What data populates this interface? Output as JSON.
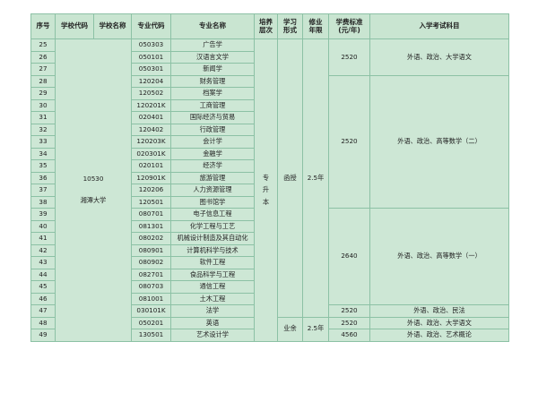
{
  "header": {
    "seq": "序号",
    "school_code": "学校代码",
    "school_name": "学校名称",
    "major_code": "专业代码",
    "major_name": "专业名称",
    "level": [
      "培养",
      "层次"
    ],
    "study_form": [
      "学习",
      "形式"
    ],
    "duration": [
      "修业",
      "年限"
    ],
    "fee": [
      "学费标准",
      "(元/年)"
    ],
    "exam": "入学考试科目"
  },
  "school": {
    "code": "10530",
    "name": "湘潭大学"
  },
  "level_value": [
    "专",
    "升",
    "本"
  ],
  "forms": [
    {
      "label": "函授",
      "duration": "2.5年",
      "rows": 23
    },
    {
      "label": "业余",
      "duration": "2.5年",
      "rows": 2
    }
  ],
  "fee_groups": [
    {
      "fee": "2520",
      "exam": "外语、政治、大学语文",
      "rows": 3
    },
    {
      "fee": "2520",
      "exam": "外语、政治、高等数学（二）",
      "rows": 11
    },
    {
      "fee": "2640",
      "exam": "外语、政治、高等数学（一）",
      "rows": 8
    },
    {
      "fee": "2520",
      "exam": "外语、政治、民法",
      "rows": 1
    },
    {
      "fee": "2520",
      "exam": "外语、政治、大学语文",
      "rows": 1
    },
    {
      "fee": "4560",
      "exam": "外语、政治、艺术概论",
      "rows": 1
    }
  ],
  "rows": [
    {
      "seq": "25",
      "code": "050303",
      "name": "广告学"
    },
    {
      "seq": "26",
      "code": "050101",
      "name": "汉语言文学"
    },
    {
      "seq": "27",
      "code": "050301",
      "name": "新闻学"
    },
    {
      "seq": "28",
      "code": "120204",
      "name": "财务管理"
    },
    {
      "seq": "29",
      "code": "120502",
      "name": "档案学"
    },
    {
      "seq": "30",
      "code": "120201K",
      "name": "工商管理"
    },
    {
      "seq": "31",
      "code": "020401",
      "name": "国际经济与贸易"
    },
    {
      "seq": "32",
      "code": "120402",
      "name": "行政管理"
    },
    {
      "seq": "33",
      "code": "120203K",
      "name": "会计学"
    },
    {
      "seq": "34",
      "code": "020301K",
      "name": "金融学"
    },
    {
      "seq": "35",
      "code": "020101",
      "name": "经济学"
    },
    {
      "seq": "36",
      "code": "120901K",
      "name": "旅游管理"
    },
    {
      "seq": "37",
      "code": "120206",
      "name": "人力资源管理"
    },
    {
      "seq": "38",
      "code": "120501",
      "name": "图书馆学"
    },
    {
      "seq": "39",
      "code": "080701",
      "name": "电子信息工程"
    },
    {
      "seq": "40",
      "code": "081301",
      "name": "化学工程与工艺"
    },
    {
      "seq": "41",
      "code": "080202",
      "name": "机械设计制造及其自动化"
    },
    {
      "seq": "42",
      "code": "080901",
      "name": "计算机科学与技术"
    },
    {
      "seq": "43",
      "code": "080902",
      "name": "软件工程"
    },
    {
      "seq": "44",
      "code": "082701",
      "name": "食品科学与工程"
    },
    {
      "seq": "45",
      "code": "080703",
      "name": "通信工程"
    },
    {
      "seq": "46",
      "code": "081001",
      "name": "土木工程"
    },
    {
      "seq": "47",
      "code": "030101K",
      "name": "法学"
    },
    {
      "seq": "48",
      "code": "050201",
      "name": "英语"
    },
    {
      "seq": "49",
      "code": "130501",
      "name": "艺术设计学"
    }
  ]
}
